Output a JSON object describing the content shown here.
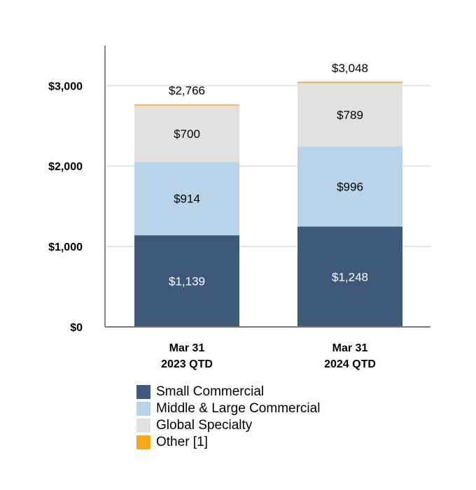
{
  "chart_data": {
    "type": "bar",
    "stacked": true,
    "categories": [
      [
        "Mar 31",
        "2023 QTD"
      ],
      [
        "Mar 31",
        "2024 QTD"
      ]
    ],
    "series": [
      {
        "name": "Small Commercial",
        "color": "#3d5a7a",
        "label_color": "#ffffff",
        "values": [
          1139,
          1248
        ],
        "labels": [
          "$1,139",
          "$1,248"
        ]
      },
      {
        "name": "Middle & Large Commercial",
        "color": "#b8d4ea",
        "label_color": "#000000",
        "values": [
          914,
          996
        ],
        "labels": [
          "$914",
          "$996"
        ]
      },
      {
        "name": "Global Specialty",
        "color": "#e1e1e1",
        "label_color": "#000000",
        "values": [
          700,
          789
        ],
        "labels": [
          "$700",
          "$789"
        ]
      },
      {
        "name": "Other [1]",
        "color": "#f5a81c",
        "label_color": "#000000",
        "values": [
          13,
          15
        ],
        "labels": [
          "",
          ""
        ]
      }
    ],
    "totals": [
      2766,
      3048
    ],
    "total_labels": [
      "$2,766",
      "$3,048"
    ],
    "ylim": [
      0,
      3500
    ],
    "yticks": [
      0,
      1000,
      2000,
      3000
    ],
    "ytick_labels": [
      "$0",
      "$1,000",
      "$2,000",
      "$3,000"
    ],
    "grid": true,
    "legend_position": "bottom"
  }
}
